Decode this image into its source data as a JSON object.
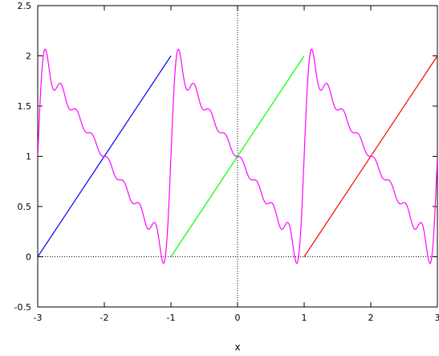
{
  "chart_data": {
    "type": "line",
    "title": "",
    "xlabel": "x",
    "ylabel": "",
    "xlim": [
      -3,
      3
    ],
    "ylim": [
      -0.5,
      2.5
    ],
    "xticks": [
      -3,
      -2,
      -1,
      0,
      1,
      2,
      3
    ],
    "xtick_labels": [
      "-3",
      "-2",
      "-1",
      "0",
      "1",
      "2",
      "3"
    ],
    "yticks": [
      -0.5,
      0,
      0.5,
      1,
      1.5,
      2,
      2.5
    ],
    "ytick_labels": [
      "-0.5",
      "0",
      "0.5",
      "1",
      "1.5",
      "2",
      "2.5"
    ],
    "grid": false,
    "zero_axes": "dotted",
    "series": [
      {
        "color": "#0000ff",
        "x": [
          -3,
          -1
        ],
        "y": [
          0,
          2
        ]
      },
      {
        "color": "#00ff00",
        "x": [
          -1,
          1
        ],
        "y": [
          0,
          2
        ]
      },
      {
        "color": "#ff0000",
        "x": [
          1,
          3
        ],
        "y": [
          0,
          2
        ]
      },
      {
        "color": "#ff00ff",
        "style": "oscillating",
        "function": "fourier_sawtooth_period_2",
        "harmonics": 8,
        "x_range": [
          -3,
          3
        ]
      }
    ]
  }
}
